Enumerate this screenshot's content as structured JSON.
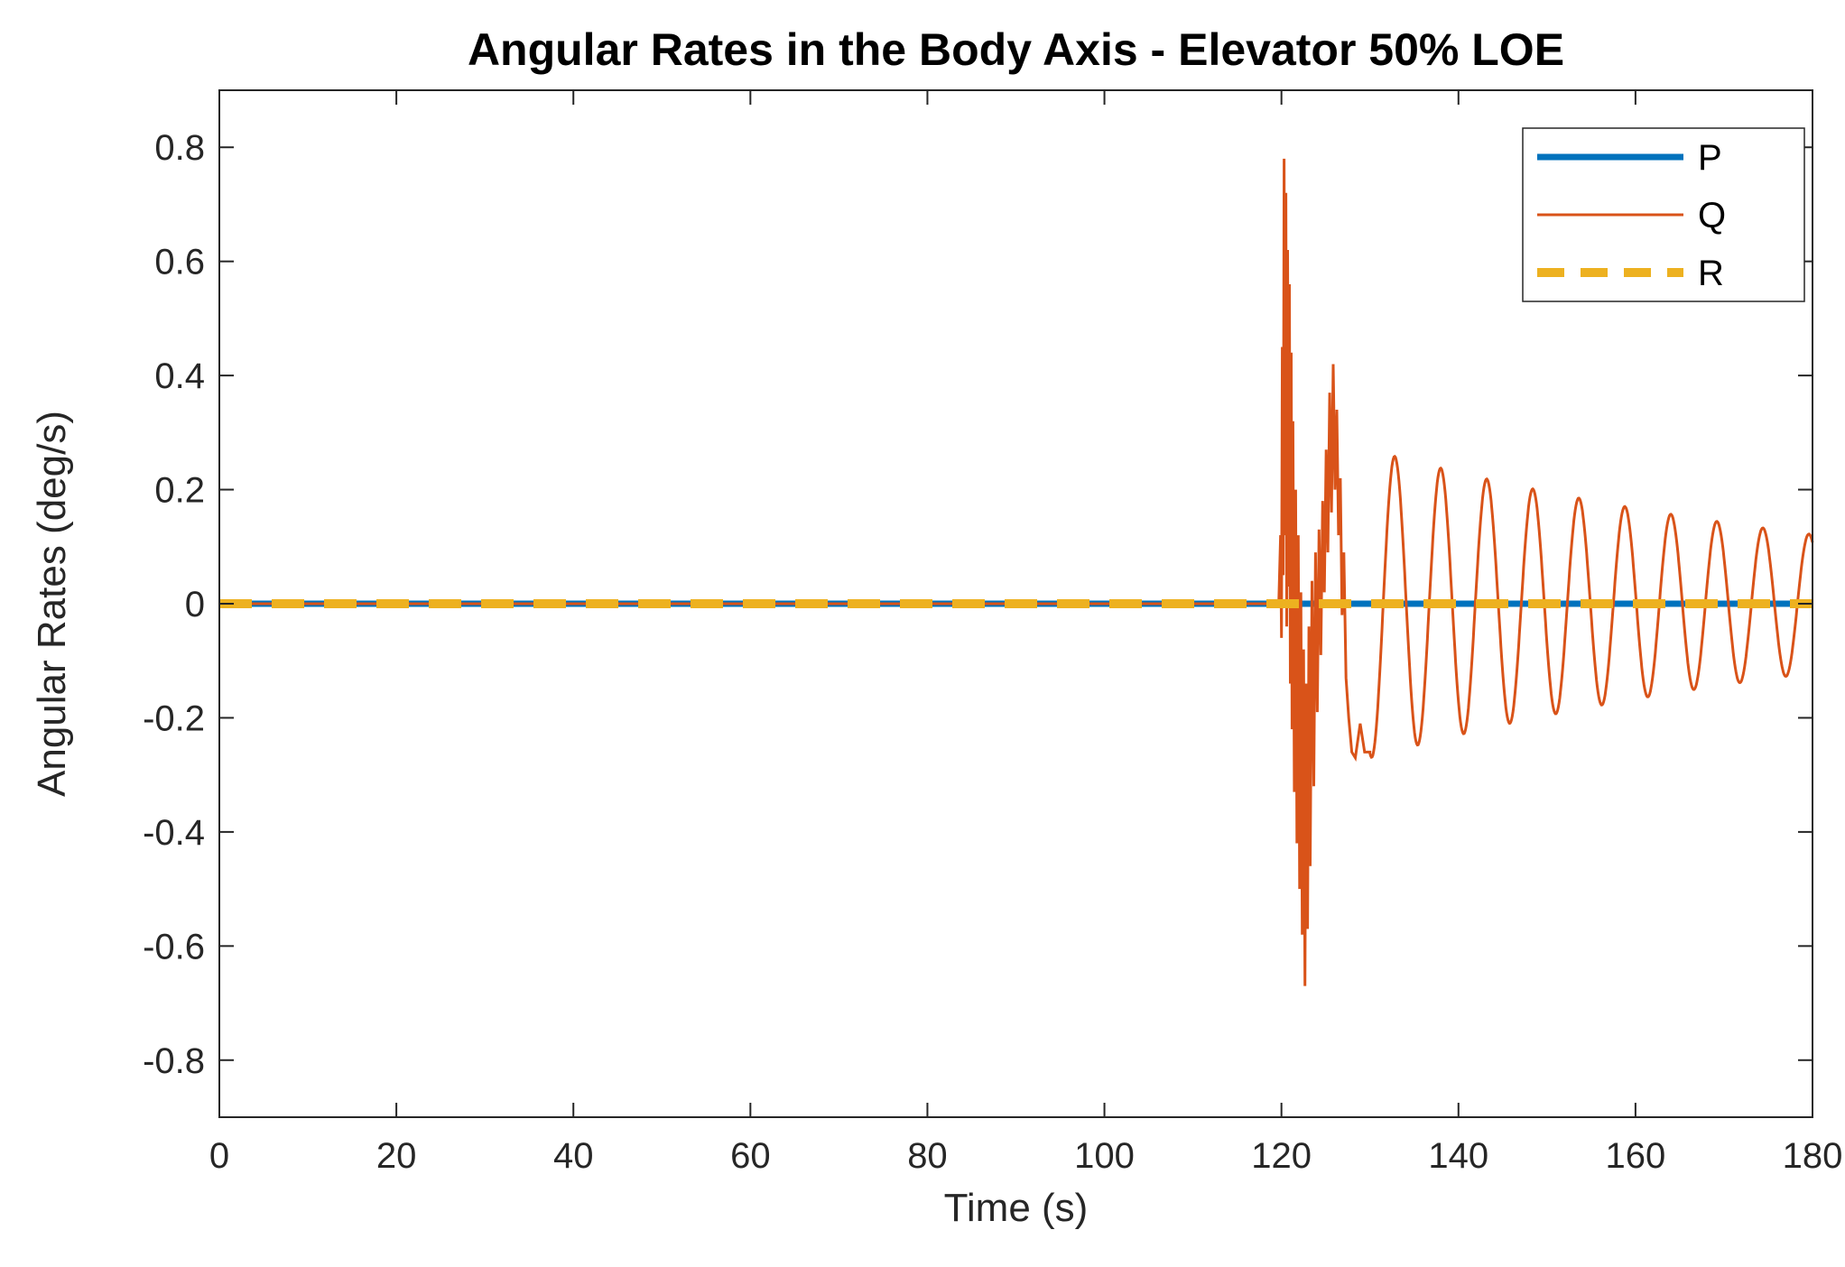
{
  "chart_data": {
    "type": "line",
    "title": "Angular Rates in the Body Axis - Elevator 50% LOE",
    "xlabel": "Time (s)",
    "ylabel": "Angular Rates (deg/s)",
    "xlim": [
      0,
      180
    ],
    "ylim": [
      -0.9,
      0.9
    ],
    "xticks": [
      0,
      20,
      40,
      60,
      80,
      100,
      120,
      140,
      160,
      180
    ],
    "yticks": [
      -0.8,
      -0.6,
      -0.4,
      -0.2,
      0,
      0.2,
      0.4,
      0.6,
      0.8
    ],
    "grid": false,
    "background": "#FFFFFF",
    "axis_color": "#262626",
    "legend": {
      "position": "top-right",
      "entries": [
        {
          "label": "P",
          "series": "P"
        },
        {
          "label": "Q",
          "series": "Q"
        },
        {
          "label": "R",
          "series": "R"
        }
      ]
    },
    "series": [
      {
        "name": "P",
        "color": "#0072BD",
        "line_width": 7,
        "dash": null,
        "description": "Roll rate P: constant 0 deg/s for the entire 0-180 s span",
        "model": {
          "kind": "constant",
          "value": 0,
          "x_start": 0,
          "x_end": 180,
          "step": 2
        }
      },
      {
        "name": "Q",
        "color": "#D95319",
        "line_width": 3,
        "dash": null,
        "description": "Pitch rate Q: zero until ~119.7 s, chaotic high-frequency transient burst 119.7-130 s peaking at +0.78 and -0.67 deg/s, then lightly damped ~5.2 s period oscillation decaying from ~0.27 to ~0.1 deg/s amplitude by 180 s",
        "peak_positive": 0.78,
        "peak_negative": -0.67,
        "model": {
          "kind": "piecewise",
          "zero_until": 119.7,
          "burst_points": [
            [
              119.7,
              0
            ],
            [
              119.9,
              0.12
            ],
            [
              120.0,
              -0.06
            ],
            [
              120.1,
              0.45
            ],
            [
              120.2,
              0.05
            ],
            [
              120.3,
              0.78
            ],
            [
              120.4,
              0.12
            ],
            [
              120.5,
              0.72
            ],
            [
              120.6,
              -0.04
            ],
            [
              120.7,
              0.62
            ],
            [
              120.8,
              0.03
            ],
            [
              120.9,
              0.56
            ],
            [
              121.0,
              -0.14
            ],
            [
              121.1,
              0.44
            ],
            [
              121.2,
              -0.22
            ],
            [
              121.3,
              0.32
            ],
            [
              121.45,
              -0.33
            ],
            [
              121.6,
              0.2
            ],
            [
              121.75,
              -0.42
            ],
            [
              121.9,
              0.12
            ],
            [
              122.05,
              -0.5
            ],
            [
              122.2,
              0.02
            ],
            [
              122.35,
              -0.58
            ],
            [
              122.5,
              -0.08
            ],
            [
              122.65,
              -0.67
            ],
            [
              122.8,
              -0.14
            ],
            [
              122.95,
              -0.57
            ],
            [
              123.1,
              -0.04
            ],
            [
              123.25,
              -0.46
            ],
            [
              123.45,
              0.04
            ],
            [
              123.65,
              -0.32
            ],
            [
              123.85,
              0.09
            ],
            [
              124.05,
              -0.19
            ],
            [
              124.25,
              0.13
            ],
            [
              124.45,
              -0.09
            ],
            [
              124.65,
              0.18
            ],
            [
              124.85,
              0.02
            ],
            [
              125.05,
              0.27
            ],
            [
              125.25,
              0.09
            ],
            [
              125.45,
              0.37
            ],
            [
              125.65,
              0.16
            ],
            [
              125.85,
              0.42
            ],
            [
              126.05,
              0.2
            ],
            [
              126.25,
              0.34
            ],
            [
              126.45,
              0.12
            ],
            [
              126.65,
              0.22
            ],
            [
              126.85,
              -0.02
            ],
            [
              127.05,
              0.09
            ],
            [
              127.3,
              -0.13
            ],
            [
              127.6,
              -0.2
            ],
            [
              127.95,
              -0.26
            ],
            [
              128.35,
              -0.27
            ],
            [
              128.9,
              -0.21
            ],
            [
              129.4,
              -0.26
            ],
            [
              130.0,
              -0.26
            ]
          ],
          "damped_sine": {
            "x_start": 130.0,
            "x_end": 180,
            "amplitude": 0.27,
            "amp_ref_t": 130,
            "decay_per_s": 0.016,
            "period_s": 5.2,
            "zero_cross_up_t": 131.5,
            "step": 0.08
          }
        }
      },
      {
        "name": "R",
        "color": "#EDB120",
        "line_width": 10,
        "dash": [
          36,
          22
        ],
        "description": "Yaw rate R: constant 0 deg/s for the entire 0-180 s span (thick dashed line over P)",
        "model": {
          "kind": "constant",
          "value": 0,
          "x_start": 0,
          "x_end": 180,
          "step": 2
        }
      }
    ]
  }
}
